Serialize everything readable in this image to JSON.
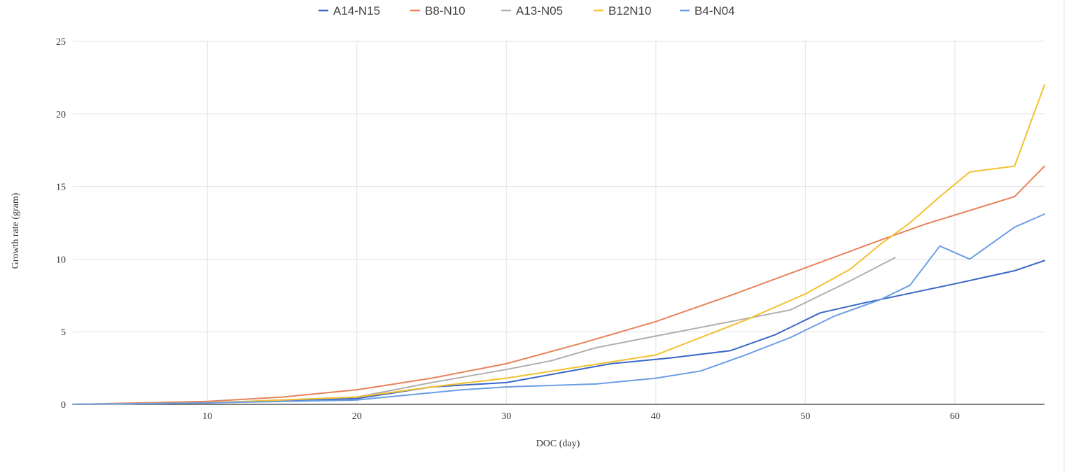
{
  "chart_data": {
    "type": "line",
    "title": "",
    "xlabel": "DOC (day)",
    "ylabel": "Growth rate (gram)",
    "xlim": [
      1,
      66
    ],
    "ylim": [
      0,
      25
    ],
    "x_ticks": [
      10,
      20,
      30,
      40,
      50,
      60
    ],
    "y_ticks": [
      0,
      5,
      10,
      15,
      20,
      25
    ],
    "grid": true,
    "legend_position": "top",
    "series": [
      {
        "name": "A14-N15",
        "color": "#3a67c6",
        "points": [
          [
            1,
            0
          ],
          [
            10,
            0.1
          ],
          [
            20,
            0.4
          ],
          [
            25,
            1.2
          ],
          [
            30,
            1.5
          ],
          [
            37,
            2.8
          ],
          [
            41,
            3.2
          ],
          [
            45,
            3.7
          ],
          [
            48,
            4.8
          ],
          [
            51,
            6.3
          ],
          [
            54,
            7.0
          ],
          [
            60,
            8.3
          ],
          [
            64,
            9.2
          ],
          [
            66,
            9.9
          ]
        ]
      },
      {
        "name": "B8-N10",
        "color": "#e8825a",
        "points": [
          [
            1,
            0
          ],
          [
            10,
            0.2
          ],
          [
            15,
            0.5
          ],
          [
            20,
            1.0
          ],
          [
            25,
            1.8
          ],
          [
            30,
            2.8
          ],
          [
            35,
            4.2
          ],
          [
            40,
            5.7
          ],
          [
            45,
            7.5
          ],
          [
            50,
            9.4
          ],
          [
            55,
            11.3
          ],
          [
            58,
            12.4
          ],
          [
            64,
            14.3
          ],
          [
            66,
            16.4
          ]
        ]
      },
      {
        "name": "A13-N05",
        "color": "#b0b0b0",
        "points": [
          [
            1,
            0
          ],
          [
            10,
            0.1
          ],
          [
            20,
            0.5
          ],
          [
            25,
            1.5
          ],
          [
            30,
            2.4
          ],
          [
            33,
            3.0
          ],
          [
            36,
            3.9
          ],
          [
            40,
            4.7
          ],
          [
            45,
            5.7
          ],
          [
            49,
            6.5
          ],
          [
            53,
            8.5
          ],
          [
            56,
            10.1
          ]
        ]
      },
      {
        "name": "B12N10",
        "color": "#f2c12e",
        "points": [
          [
            1,
            0
          ],
          [
            10,
            0.1
          ],
          [
            20,
            0.5
          ],
          [
            25,
            1.2
          ],
          [
            30,
            1.8
          ],
          [
            35,
            2.6
          ],
          [
            40,
            3.4
          ],
          [
            43,
            4.6
          ],
          [
            46,
            5.8
          ],
          [
            50,
            7.6
          ],
          [
            53,
            9.3
          ],
          [
            55,
            11.0
          ],
          [
            57,
            12.5
          ],
          [
            59,
            14.3
          ],
          [
            61,
            16.0
          ],
          [
            64,
            16.4
          ],
          [
            66,
            22.0
          ]
        ]
      },
      {
        "name": "B4-N04",
        "color": "#6b9ee4",
        "points": [
          [
            1,
            0
          ],
          [
            10,
            0.1
          ],
          [
            20,
            0.3
          ],
          [
            25,
            0.8
          ],
          [
            27,
            1.0
          ],
          [
            30,
            1.2
          ],
          [
            36,
            1.4
          ],
          [
            40,
            1.8
          ],
          [
            43,
            2.3
          ],
          [
            46,
            3.4
          ],
          [
            49,
            4.6
          ],
          [
            52,
            6.1
          ],
          [
            55,
            7.2
          ],
          [
            57,
            8.2
          ],
          [
            59,
            10.9
          ],
          [
            61,
            10.0
          ],
          [
            64,
            12.2
          ],
          [
            66,
            13.1
          ]
        ]
      }
    ]
  }
}
